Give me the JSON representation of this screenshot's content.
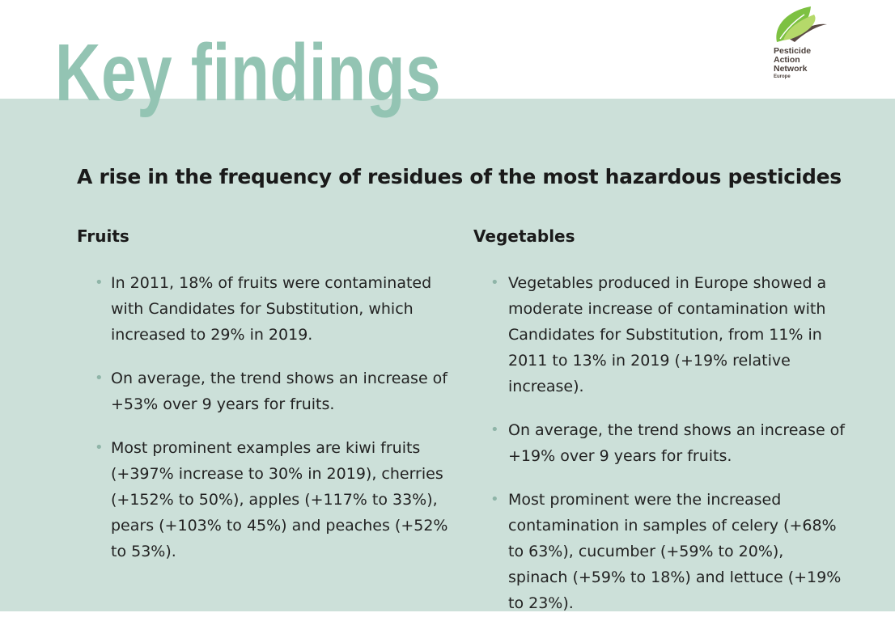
{
  "header": {
    "title": "Key findings",
    "logo": {
      "text": [
        "Pesticide",
        "Action",
        "Network",
        "Europe"
      ],
      "icon": "leaf-icon"
    }
  },
  "section": {
    "heading": "A rise in the frequency of residues of the most hazardous pesticides",
    "columns": [
      {
        "title": "Fruits",
        "bullets": [
          "In 2011, 18% of fruits were contaminated with Candidates for Substitution, which increased to 29% in 2019.",
          "On average, the trend shows an increase of +53% over 9 years for fruits.",
          "Most prominent examples are kiwi fruits (+397% increase to 30% in 2019), cherries (+152% to 50%), apples (+117% to 33%), pears (+103% to 45%) and peaches (+52% to 53%)."
        ]
      },
      {
        "title": "Vegetables",
        "bullets": [
          "Vegetables produced in Europe showed a moderate increase of contamination with Candidates for Substitution, from 11% in 2011 to 13% in 2019 (+19% relative increase).",
          "On average, the trend shows an increase of +19% over 9 years for fruits.",
          "Most prominent were the increased contamination in samples of celery (+68% to 63%), cucumber (+59% to 20%), spinach (+59% to 18%) and lettuce (+19% to 23%)."
        ]
      }
    ]
  },
  "colors": {
    "title": "#93c4b3",
    "band": "#cce0d9",
    "bullet": "#8fb5a8",
    "logo_green": "#7dc142"
  }
}
